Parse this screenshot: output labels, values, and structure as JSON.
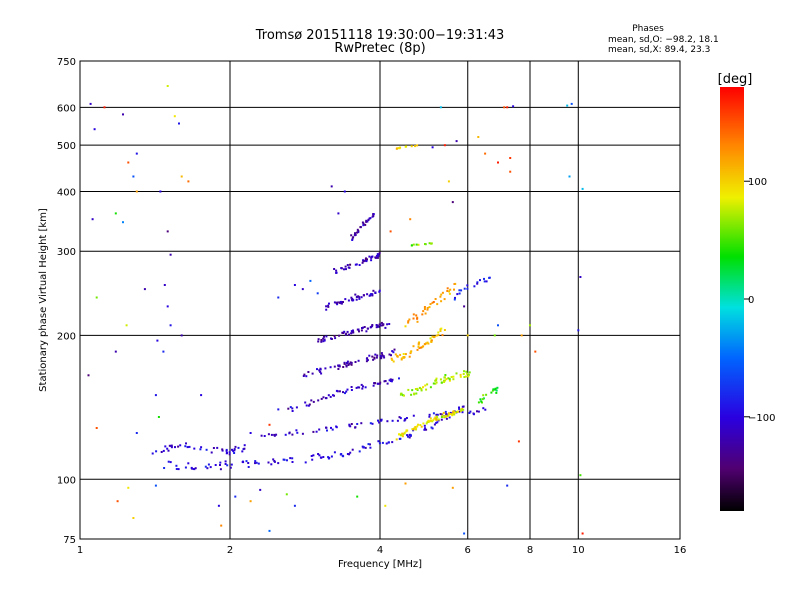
{
  "header": {
    "title": "Tromsø 20151118 19:30:00−19:31:43",
    "subtitle": "RwPretec (8p)"
  },
  "stats": {
    "title": "Phases",
    "line1": "mean, sd,O: −98.2, 18.1",
    "line2": "mean, sd,X:  89.4, 23.3"
  },
  "colorbar": {
    "unit": "[deg]",
    "ticks": [
      {
        "value": 100,
        "label": "100"
      },
      {
        "value": 0,
        "label": "0"
      },
      {
        "value": -100,
        "label": "−100"
      }
    ],
    "range": [
      -180,
      180
    ]
  },
  "chart_data": {
    "type": "scatter",
    "xlabel": "Frequency [MHz]",
    "ylabel": "Stationary phase Virtual Height [km]",
    "xscale": "log",
    "yscale": "log",
    "xlim": [
      1,
      16
    ],
    "ylim": [
      75,
      750
    ],
    "xticks": [
      {
        "value": 1,
        "label": "1"
      },
      {
        "value": 2,
        "label": "2"
      },
      {
        "value": 4,
        "label": "4"
      },
      {
        "value": 6,
        "label": "6"
      },
      {
        "value": 8,
        "label": "8"
      },
      {
        "value": 10,
        "label": "10"
      },
      {
        "value": 16,
        "label": "16"
      }
    ],
    "yticks": [
      {
        "value": 75,
        "label": "75"
      },
      {
        "value": 100,
        "label": "100"
      },
      {
        "value": 200,
        "label": "200"
      },
      {
        "value": 300,
        "label": "300"
      },
      {
        "value": 400,
        "label": "400"
      },
      {
        "value": 500,
        "label": "500"
      },
      {
        "value": 600,
        "label": "600"
      },
      {
        "value": 750,
        "label": "750"
      }
    ],
    "grid": true,
    "color_by": "phase",
    "traces": [
      {
        "f": [
          1.45,
          1.7,
          2.0,
          2.3,
          2.7,
          3.2,
          3.7,
          4.2,
          4.8,
          5.4,
          5.9
        ],
        "h": [
          108,
          106,
          107,
          108,
          110,
          112,
          116,
          120,
          126,
          134,
          142
        ],
        "phase": -100,
        "spread": 3.0,
        "density": 120
      },
      {
        "f": [
          1.35,
          1.55,
          1.8,
          2.0,
          2.15
        ],
        "h": [
          112,
          118,
          116,
          114,
          117
        ],
        "phase": -105,
        "spread": 3.0,
        "density": 45
      },
      {
        "f": [
          2.3,
          2.6,
          3.0,
          3.4,
          3.8,
          4.3,
          4.8,
          5.4,
          6.0,
          6.6
        ],
        "h": [
          123,
          125,
          127,
          129,
          131,
          133,
          135,
          137,
          138,
          140
        ],
        "phase": -108,
        "spread": 2.5,
        "density": 70
      },
      {
        "f": [
          2.6,
          2.9,
          3.2,
          3.5,
          3.8,
          4.1,
          4.4
        ],
        "h": [
          140,
          145,
          150,
          154,
          157,
          160,
          163
        ],
        "phase": -112,
        "spread": 3.0,
        "density": 55
      },
      {
        "f": [
          2.8,
          3.1,
          3.4,
          3.7,
          4.0,
          4.3
        ],
        "h": [
          165,
          170,
          174,
          178,
          181,
          184
        ],
        "phase": -118,
        "spread": 3.5,
        "density": 60
      },
      {
        "f": [
          3.0,
          3.3,
          3.6,
          3.9,
          4.2
        ],
        "h": [
          195,
          200,
          205,
          209,
          212
        ],
        "phase": -120,
        "spread": 4.0,
        "density": 55
      },
      {
        "f": [
          3.1,
          3.4,
          3.7,
          4.0
        ],
        "h": [
          230,
          236,
          242,
          247
        ],
        "phase": -118,
        "spread": 5.0,
        "density": 45
      },
      {
        "f": [
          3.2,
          3.5,
          3.8,
          4.0
        ],
        "h": [
          270,
          280,
          288,
          295
        ],
        "phase": -118,
        "spread": 6.0,
        "density": 40
      },
      {
        "f": [
          3.5,
          3.7,
          3.9
        ],
        "h": [
          320,
          340,
          360
        ],
        "phase": -122,
        "spread": 7.0,
        "density": 30
      },
      {
        "f": [
          4.3,
          4.7,
          5.1,
          5.5,
          5.9
        ],
        "h": [
          122,
          128,
          133,
          137,
          140
        ],
        "phase": 90,
        "spread": 2.5,
        "density": 70
      },
      {
        "f": [
          4.4,
          4.8,
          5.2,
          5.6,
          6.1
        ],
        "h": [
          150,
          155,
          160,
          164,
          167
        ],
        "phase": 70,
        "spread": 5.0,
        "density": 55
      },
      {
        "f": [
          4.2,
          4.6,
          5.0,
          5.4
        ],
        "h": [
          175,
          185,
          195,
          205
        ],
        "phase": 110,
        "spread": 6.0,
        "density": 50
      },
      {
        "f": [
          4.5,
          4.9,
          5.3,
          5.7
        ],
        "h": [
          210,
          225,
          240,
          255
        ],
        "phase": 120,
        "spread": 8.0,
        "density": 35
      },
      {
        "f": [
          6.3,
          6.6,
          6.9
        ],
        "h": [
          145,
          150,
          155
        ],
        "phase": 40,
        "spread": 4.0,
        "density": 16
      },
      {
        "f": [
          4.3,
          4.5,
          4.8
        ],
        "h": [
          492,
          496,
          500
        ],
        "phase": 100,
        "spread": 3.0,
        "density": 10
      },
      {
        "f": [
          4.6,
          4.9,
          5.1
        ],
        "h": [
          308,
          310,
          312
        ],
        "phase": 60,
        "spread": 2.0,
        "density": 10
      },
      {
        "f": [
          5.6,
          5.9,
          6.3,
          6.7
        ],
        "h": [
          240,
          250,
          258,
          264
        ],
        "phase": -90,
        "spread": 6.0,
        "density": 18
      }
    ],
    "scatter": [
      {
        "f": 1.05,
        "h": 610,
        "phase": -110
      },
      {
        "f": 1.07,
        "h": 540,
        "phase": -100
      },
      {
        "f": 1.12,
        "h": 600,
        "phase": 170
      },
      {
        "f": 1.22,
        "h": 580,
        "phase": -120
      },
      {
        "f": 1.25,
        "h": 460,
        "phase": 150
      },
      {
        "f": 1.3,
        "h": 480,
        "phase": -90
      },
      {
        "f": 1.28,
        "h": 430,
        "phase": -60
      },
      {
        "f": 1.18,
        "h": 360,
        "phase": 40
      },
      {
        "f": 1.22,
        "h": 345,
        "phase": -40
      },
      {
        "f": 1.06,
        "h": 350,
        "phase": -110
      },
      {
        "f": 1.3,
        "h": 400,
        "phase": 120
      },
      {
        "f": 1.5,
        "h": 665,
        "phase": 80
      },
      {
        "f": 1.55,
        "h": 575,
        "phase": 90
      },
      {
        "f": 1.58,
        "h": 555,
        "phase": -90
      },
      {
        "f": 1.45,
        "h": 400,
        "phase": -100
      },
      {
        "f": 1.6,
        "h": 430,
        "phase": 110
      },
      {
        "f": 1.65,
        "h": 420,
        "phase": 140
      },
      {
        "f": 1.5,
        "h": 330,
        "phase": -140
      },
      {
        "f": 1.52,
        "h": 295,
        "phase": -120
      },
      {
        "f": 1.48,
        "h": 255,
        "phase": -110
      },
      {
        "f": 1.5,
        "h": 230,
        "phase": -100
      },
      {
        "f": 1.52,
        "h": 210,
        "phase": -90
      },
      {
        "f": 1.43,
        "h": 195,
        "phase": -100
      },
      {
        "f": 1.47,
        "h": 185,
        "phase": -80
      },
      {
        "f": 1.35,
        "h": 250,
        "phase": -120
      },
      {
        "f": 1.24,
        "h": 210,
        "phase": 80
      },
      {
        "f": 1.08,
        "h": 240,
        "phase": 60
      },
      {
        "f": 1.04,
        "h": 165,
        "phase": -140
      },
      {
        "f": 1.18,
        "h": 185,
        "phase": -120
      },
      {
        "f": 1.42,
        "h": 150,
        "phase": -90
      },
      {
        "f": 1.44,
        "h": 135,
        "phase": 40
      },
      {
        "f": 1.3,
        "h": 125,
        "phase": -80
      },
      {
        "f": 1.08,
        "h": 128,
        "phase": 150
      },
      {
        "f": 1.25,
        "h": 96,
        "phase": 90
      },
      {
        "f": 1.28,
        "h": 83,
        "phase": 100
      },
      {
        "f": 1.42,
        "h": 97,
        "phase": -60
      },
      {
        "f": 1.19,
        "h": 90,
        "phase": 150
      },
      {
        "f": 1.9,
        "h": 88,
        "phase": -100
      },
      {
        "f": 1.92,
        "h": 80,
        "phase": 130
      },
      {
        "f": 2.4,
        "h": 78,
        "phase": -50
      },
      {
        "f": 2.2,
        "h": 90,
        "phase": 120
      },
      {
        "f": 2.3,
        "h": 95,
        "phase": -110
      },
      {
        "f": 2.6,
        "h": 93,
        "phase": 60
      },
      {
        "f": 2.7,
        "h": 88,
        "phase": -80
      },
      {
        "f": 3.6,
        "h": 92,
        "phase": 40
      },
      {
        "f": 4.1,
        "h": 88,
        "phase": 90
      },
      {
        "f": 4.5,
        "h": 98,
        "phase": 120
      },
      {
        "f": 5.6,
        "h": 96,
        "phase": 120
      },
      {
        "f": 5.9,
        "h": 77,
        "phase": -60
      },
      {
        "f": 7.2,
        "h": 97,
        "phase": -80
      },
      {
        "f": 10.1,
        "h": 102,
        "phase": 50
      },
      {
        "f": 10.2,
        "h": 77,
        "phase": 170
      },
      {
        "f": 9.5,
        "h": 605,
        "phase": -20
      },
      {
        "f": 9.7,
        "h": 610,
        "phase": -60
      },
      {
        "f": 9.6,
        "h": 430,
        "phase": -30
      },
      {
        "f": 10.2,
        "h": 405,
        "phase": -20
      },
      {
        "f": 10.1,
        "h": 265,
        "phase": -110
      },
      {
        "f": 10.0,
        "h": 205,
        "phase": -90
      },
      {
        "f": 7.2,
        "h": 600,
        "phase": 170
      },
      {
        "f": 7.1,
        "h": 600,
        "phase": 150
      },
      {
        "f": 7.4,
        "h": 603,
        "phase": -100
      },
      {
        "f": 5.3,
        "h": 600,
        "phase": -20
      },
      {
        "f": 7.3,
        "h": 470,
        "phase": 160
      },
      {
        "f": 7.3,
        "h": 440,
        "phase": 150
      },
      {
        "f": 6.9,
        "h": 460,
        "phase": 170
      },
      {
        "f": 6.5,
        "h": 480,
        "phase": 140
      },
      {
        "f": 6.3,
        "h": 520,
        "phase": 110
      },
      {
        "f": 5.4,
        "h": 500,
        "phase": 170
      },
      {
        "f": 5.7,
        "h": 510,
        "phase": -120
      },
      {
        "f": 5.1,
        "h": 495,
        "phase": -100
      },
      {
        "f": 5.5,
        "h": 420,
        "phase": 100
      },
      {
        "f": 5.6,
        "h": 380,
        "phase": -140
      },
      {
        "f": 3.2,
        "h": 410,
        "phase": -120
      },
      {
        "f": 3.4,
        "h": 400,
        "phase": -100
      },
      {
        "f": 3.3,
        "h": 360,
        "phase": -110
      },
      {
        "f": 2.5,
        "h": 240,
        "phase": -80
      },
      {
        "f": 2.7,
        "h": 255,
        "phase": -100
      },
      {
        "f": 2.8,
        "h": 250,
        "phase": -110
      },
      {
        "f": 2.9,
        "h": 260,
        "phase": -50
      },
      {
        "f": 3.0,
        "h": 245,
        "phase": -70
      },
      {
        "f": 2.4,
        "h": 130,
        "phase": 160
      },
      {
        "f": 2.5,
        "h": 140,
        "phase": -90
      },
      {
        "f": 2.2,
        "h": 125,
        "phase": -100
      },
      {
        "f": 7.6,
        "h": 120,
        "phase": 160
      },
      {
        "f": 7.7,
        "h": 200,
        "phase": 120
      },
      {
        "f": 8.2,
        "h": 185,
        "phase": 150
      },
      {
        "f": 8.0,
        "h": 210,
        "phase": 70
      },
      {
        "f": 6.9,
        "h": 210,
        "phase": -60
      },
      {
        "f": 6.8,
        "h": 200,
        "phase": 60
      },
      {
        "f": 5.9,
        "h": 230,
        "phase": -130
      },
      {
        "f": 6.0,
        "h": 200,
        "phase": 100
      },
      {
        "f": 4.6,
        "h": 350,
        "phase": 130
      },
      {
        "f": 4.2,
        "h": 330,
        "phase": 150
      },
      {
        "f": 1.6,
        "h": 200,
        "phase": -120
      },
      {
        "f": 1.75,
        "h": 150,
        "phase": -100
      },
      {
        "f": 2.05,
        "h": 92,
        "phase": -80
      }
    ]
  }
}
